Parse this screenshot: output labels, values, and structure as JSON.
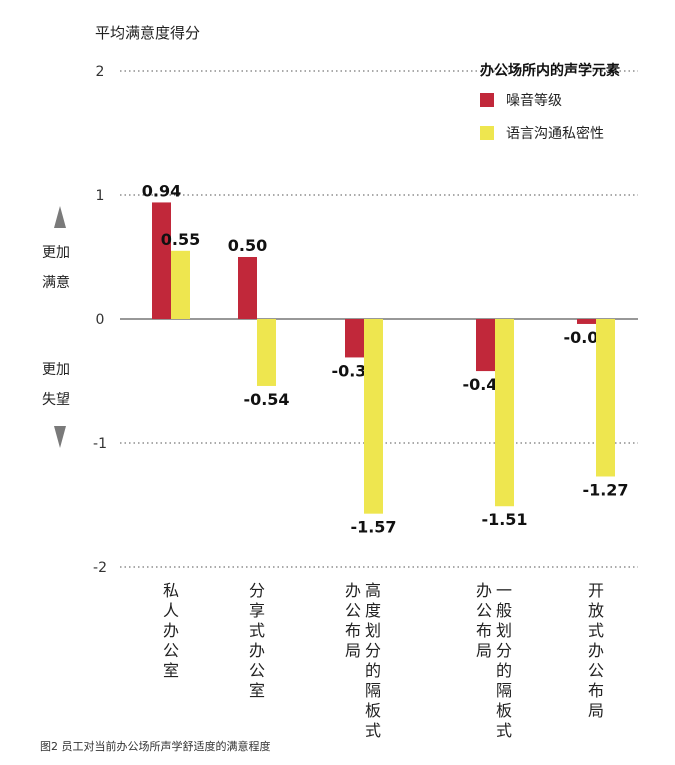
{
  "chart_data": {
    "type": "bar",
    "ylabel": "平均满意度得分",
    "ylim": [
      -2,
      2
    ],
    "yticks": [
      "2",
      "1",
      "0",
      "-1",
      "-2"
    ],
    "categories": [
      "私人办公室",
      "分享式办公室",
      "高度划分的隔板式办公布局",
      "一般划分的隔板式办公布局",
      "开放式办公布局"
    ],
    "category_lines": [
      [
        "私人办公室"
      ],
      [
        "分享式办公室"
      ],
      [
        "高度划分的隔板式",
        "办公布局"
      ],
      [
        "一般划分的隔板式",
        "办公布局"
      ],
      [
        "开放式办公布局"
      ]
    ],
    "legend_title": "办公场所内的声学元素",
    "series": [
      {
        "name": "噪音等级",
        "color": "#c1283a",
        "values": [
          0.94,
          0.5,
          -0.31,
          -0.42,
          -0.04
        ],
        "labels": [
          "0.94",
          "0.50",
          "-0.31",
          "-0.42",
          "-0.04"
        ]
      },
      {
        "name": "语言沟通私密性",
        "color": "#eee64f",
        "values": [
          0.55,
          -0.54,
          -1.57,
          -1.51,
          -1.27
        ],
        "labels": [
          "0.55",
          "-0.54",
          "-1.57",
          "-1.51",
          "-1.27"
        ]
      }
    ],
    "grid": true,
    "legend_position": "top-right"
  },
  "side_notes": {
    "more_satisfied": [
      "更加",
      "满意"
    ],
    "more_disappointed": [
      "更加",
      "失望"
    ]
  },
  "caption": "图2 员工对当前办公场所声学舒适度的满意程度"
}
